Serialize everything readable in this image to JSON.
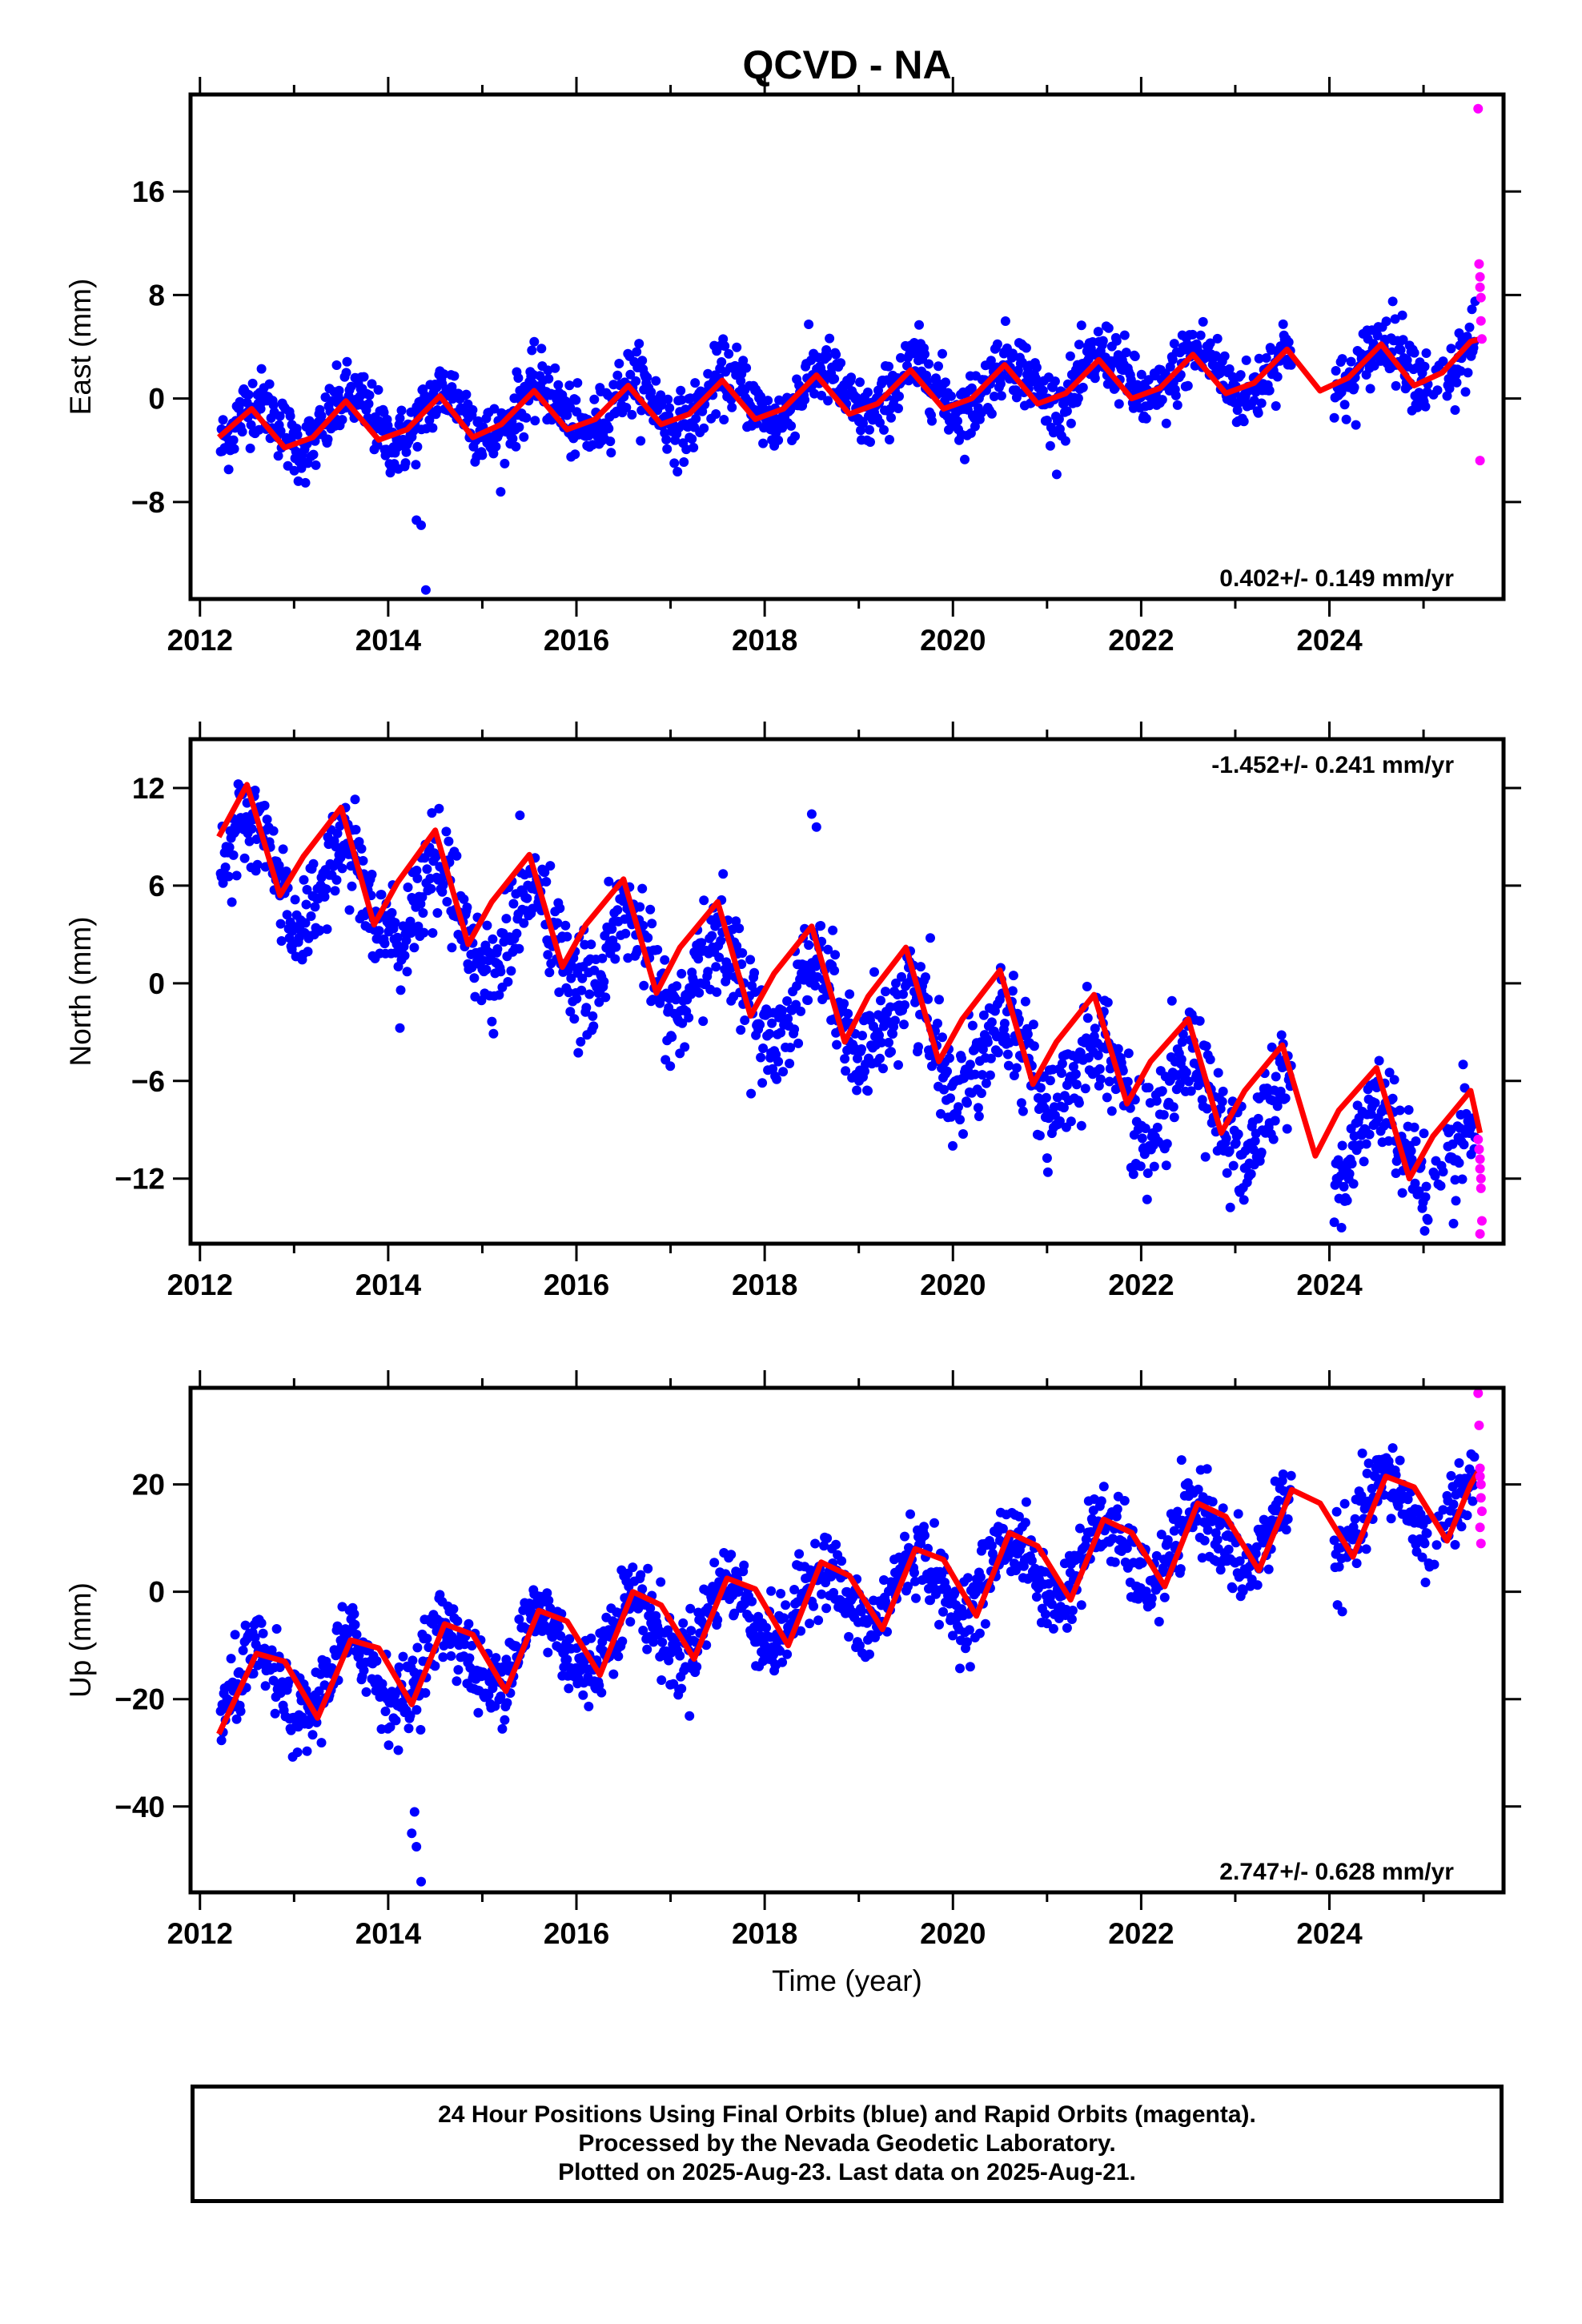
{
  "figure": {
    "title": "QCVD - NA",
    "xlabel": "Time (year)",
    "colors": {
      "final": "#0000ff",
      "rapid": "#ff00ff",
      "model": "#ff0000",
      "axes": "#000000"
    }
  },
  "chart_data": [
    {
      "type": "scatter",
      "panel": "east",
      "ylabel": "East (mm)",
      "x_ticks": [
        2012,
        2014,
        2016,
        2018,
        2020,
        2022,
        2024
      ],
      "y_ticks": [
        -8,
        0,
        8,
        16
      ],
      "xlim": [
        2011.9,
        2025.85
      ],
      "ylim": [
        -15.5,
        23.5
      ],
      "rate_text": "0.402+/- 0.149 mm/yr",
      "rate_position": "bottom-right",
      "trend": {
        "slope": 0.402,
        "intercept_at_2012": -2.4,
        "annual_amp": 1.9,
        "annual_peak_year_fraction": 0.6
      },
      "model": {
        "x": [
          2012.2,
          2012.55,
          2012.9,
          2013.2,
          2013.55,
          2013.9,
          2014.2,
          2014.55,
          2014.9,
          2015.2,
          2015.55,
          2015.9,
          2016.2,
          2016.55,
          2016.9,
          2017.2,
          2017.55,
          2017.9,
          2018.2,
          2018.55,
          2018.9,
          2019.2,
          2019.55,
          2019.9,
          2020.2,
          2020.55,
          2020.9,
          2021.2,
          2021.55,
          2021.9,
          2022.2,
          2022.55,
          2022.9,
          2023.2,
          2023.55,
          2023.9,
          2024.2,
          2024.55,
          2024.9,
          2025.2,
          2025.5,
          2025.6
        ],
        "y": [
          -3.0,
          -0.8,
          -3.8,
          -3.0,
          -0.2,
          -3.2,
          -2.4,
          0.2,
          -3.0,
          -2.0,
          0.6,
          -2.4,
          -1.6,
          1.0,
          -2.0,
          -1.2,
          1.4,
          -1.6,
          -0.8,
          1.8,
          -1.2,
          -0.4,
          2.2,
          -0.8,
          0.0,
          2.6,
          -0.4,
          0.4,
          3.0,
          0.0,
          0.8,
          3.4,
          0.4,
          1.2,
          3.8,
          0.6,
          1.6,
          4.2,
          1.0,
          2.0,
          4.4,
          4.6
        ]
      },
      "rapid": {
        "x": [
          2025.58,
          2025.59,
          2025.6,
          2025.6,
          2025.61,
          2025.61,
          2025.62,
          2025.6
        ],
        "y": [
          22.4,
          10.4,
          9.4,
          8.6,
          7.8,
          6.0,
          4.6,
          -4.8
        ]
      },
      "outliers": {
        "x": [
          2014.3,
          2014.35,
          2014.4
        ],
        "y": [
          -9.4,
          -9.8,
          -14.8
        ]
      }
    },
    {
      "type": "scatter",
      "panel": "north",
      "ylabel": "North (mm)",
      "x_ticks": [
        2012,
        2014,
        2016,
        2018,
        2020,
        2022,
        2024
      ],
      "y_ticks": [
        -12,
        -6,
        0,
        6,
        12
      ],
      "xlim": [
        2011.9,
        2025.85
      ],
      "ylim": [
        -16,
        15
      ],
      "rate_text": "-1.452+/- 0.241 mm/yr",
      "rate_position": "top-right",
      "trend": {
        "slope": -1.452,
        "intercept_at_2012": 8.0,
        "annual_amp": 2.8,
        "annual_peak_year_fraction": 0.55
      },
      "model": {
        "x": [
          2012.2,
          2012.5,
          2012.85,
          2013.1,
          2013.5,
          2013.85,
          2014.1,
          2014.5,
          2014.85,
          2015.1,
          2015.5,
          2015.85,
          2016.1,
          2016.5,
          2016.85,
          2017.1,
          2017.5,
          2017.85,
          2018.1,
          2018.5,
          2018.85,
          2019.1,
          2019.5,
          2019.85,
          2020.1,
          2020.5,
          2020.85,
          2021.1,
          2021.5,
          2021.85,
          2022.1,
          2022.5,
          2022.85,
          2023.1,
          2023.5,
          2023.85,
          2024.1,
          2024.5,
          2024.85,
          2025.1,
          2025.5,
          2025.6
        ],
        "y": [
          9.0,
          12.2,
          5.4,
          7.8,
          10.8,
          3.6,
          6.2,
          9.4,
          2.4,
          5.0,
          7.9,
          1.0,
          3.6,
          6.4,
          -0.6,
          2.2,
          5.0,
          -2.0,
          0.6,
          3.5,
          -3.6,
          -0.8,
          2.2,
          -4.8,
          -2.2,
          0.8,
          -6.2,
          -3.6,
          -0.7,
          -7.4,
          -4.8,
          -2.2,
          -9.2,
          -6.6,
          -3.8,
          -10.6,
          -7.8,
          -5.2,
          -12.0,
          -9.4,
          -6.6,
          -9.2
        ]
      },
      "rapid": {
        "x": [
          2025.58,
          2025.59,
          2025.6,
          2025.6,
          2025.61,
          2025.61,
          2025.62,
          2025.6
        ],
        "y": [
          -9.6,
          -10.2,
          -10.8,
          -11.4,
          -12.0,
          -12.6,
          -14.6,
          -15.4
        ]
      },
      "outliers": {
        "x": [
          2018.5,
          2018.55
        ],
        "y": [
          10.4,
          9.6
        ]
      }
    },
    {
      "type": "scatter",
      "panel": "up",
      "ylabel": "Up (mm)",
      "x_ticks": [
        2012,
        2014,
        2016,
        2018,
        2020,
        2022,
        2024
      ],
      "y_ticks": [
        -40,
        -20,
        0,
        20
      ],
      "xlim": [
        2011.9,
        2025.85
      ],
      "ylim": [
        -56,
        38
      ],
      "rate_text": "2.747+/- 0.628 mm/yr",
      "rate_position": "bottom-right",
      "trend": {
        "slope": 2.747,
        "intercept_at_2012": -20.0,
        "annual_amp": 6.5,
        "annual_peak_year_fraction": 0.6
      },
      "model": {
        "x": [
          2012.2,
          2012.6,
          2012.9,
          2013.25,
          2013.6,
          2013.9,
          2014.25,
          2014.6,
          2014.9,
          2015.25,
          2015.6,
          2015.9,
          2016.25,
          2016.6,
          2016.9,
          2017.25,
          2017.6,
          2017.9,
          2018.25,
          2018.6,
          2018.9,
          2019.25,
          2019.6,
          2019.9,
          2020.25,
          2020.6,
          2020.9,
          2021.25,
          2021.6,
          2021.9,
          2022.25,
          2022.6,
          2022.9,
          2023.25,
          2023.6,
          2023.9,
          2024.25,
          2024.6,
          2024.9,
          2025.25,
          2025.5,
          2025.6
        ],
        "y": [
          -26.5,
          -11.5,
          -13.0,
          -23.5,
          -9.0,
          -10.5,
          -21.0,
          -6.0,
          -8.0,
          -18.5,
          -3.5,
          -5.5,
          -15.5,
          0.0,
          -2.5,
          -12.5,
          2.5,
          0.5,
          -10.0,
          5.5,
          3.0,
          -7.0,
          8.0,
          6.0,
          -4.5,
          11.0,
          8.5,
          -1.5,
          13.5,
          11.0,
          1.0,
          16.5,
          14.0,
          4.0,
          19.0,
          16.5,
          6.5,
          21.5,
          19.5,
          9.5,
          20.0,
          23.0
        ]
      },
      "rapid": {
        "x": [
          2025.58,
          2025.59,
          2025.6,
          2025.6,
          2025.61,
          2025.61,
          2025.62,
          2025.6,
          2025.61
        ],
        "y": [
          37.0,
          31.0,
          23.0,
          21.5,
          20.0,
          17.5,
          15.0,
          12.0,
          9.0
        ]
      },
      "outliers": {
        "x": [
          2014.25,
          2014.3,
          2014.35,
          2014.28
        ],
        "y": [
          -45.0,
          -47.5,
          -54.0,
          -41.0
        ]
      }
    }
  ],
  "footer": {
    "line1": "24 Hour Positions Using Final Orbits (blue) and Rapid Orbits (magenta).",
    "line2": "Processed by the Nevada Geodetic Laboratory.",
    "line3": "Plotted on 2025-Aug-23. Last data on 2025-Aug-21."
  }
}
